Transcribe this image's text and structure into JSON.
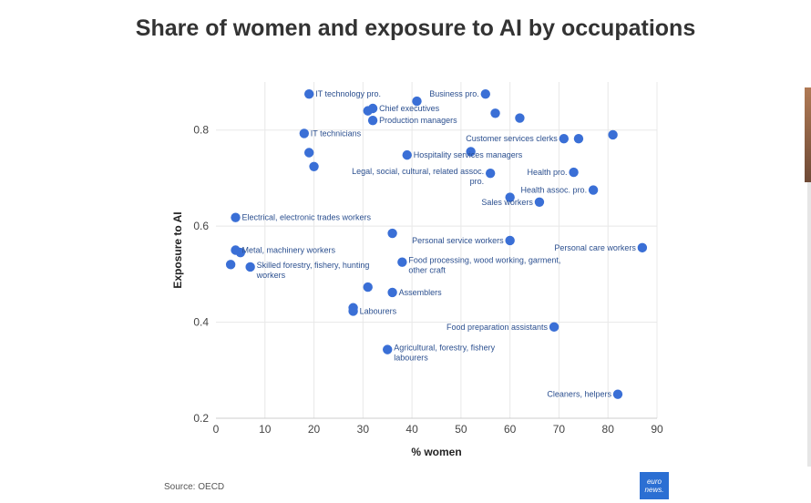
{
  "chart_data": {
    "type": "scatter",
    "title": "Share of women and exposure to AI by occupations",
    "xlabel": "% women",
    "ylabel": "Exposure to AI",
    "xlim": [
      0,
      90
    ],
    "ylim": [
      0.2,
      0.9
    ],
    "xticks": [
      0,
      10,
      20,
      30,
      40,
      50,
      60,
      70,
      80,
      90
    ],
    "yticks": [
      0.2,
      0.4,
      0.6,
      0.8
    ],
    "grid": true,
    "color": "#3a6fd6",
    "points": [
      {
        "x": 19,
        "y": 0.875,
        "label": "IT technology pro.",
        "anchor": "start"
      },
      {
        "x": 41,
        "y": 0.86,
        "label": "",
        "anchor": "start"
      },
      {
        "x": 55,
        "y": 0.875,
        "label": "Business pro.",
        "anchor": "end"
      },
      {
        "x": 31,
        "y": 0.84,
        "label": "",
        "anchor": "start"
      },
      {
        "x": 32,
        "y": 0.845,
        "label": "Chief executives",
        "anchor": "start"
      },
      {
        "x": 32,
        "y": 0.82,
        "label": "Production managers",
        "anchor": "start"
      },
      {
        "x": 57,
        "y": 0.835,
        "label": "",
        "anchor": "start"
      },
      {
        "x": 62,
        "y": 0.825,
        "label": "",
        "anchor": "start"
      },
      {
        "x": 18,
        "y": 0.793,
        "label": "IT technicians",
        "anchor": "start"
      },
      {
        "x": 71,
        "y": 0.782,
        "label": "Customer services clerks",
        "anchor": "end"
      },
      {
        "x": 74,
        "y": 0.782,
        "label": "",
        "anchor": "start"
      },
      {
        "x": 81,
        "y": 0.79,
        "label": "",
        "anchor": "start"
      },
      {
        "x": 19,
        "y": 0.753,
        "label": "",
        "anchor": "start"
      },
      {
        "x": 39,
        "y": 0.748,
        "label": "Hospitality services managers",
        "anchor": "start"
      },
      {
        "x": 52,
        "y": 0.755,
        "label": "",
        "anchor": "start"
      },
      {
        "x": 20,
        "y": 0.724,
        "label": "",
        "anchor": "start"
      },
      {
        "x": 56,
        "y": 0.71,
        "label": "Legal, social, cultural, related assoc. pro.",
        "anchor": "end"
      },
      {
        "x": 73,
        "y": 0.712,
        "label": "Health pro.",
        "anchor": "end"
      },
      {
        "x": 77,
        "y": 0.675,
        "label": "Health assoc. pro.",
        "anchor": "end"
      },
      {
        "x": 60,
        "y": 0.66,
        "label": "",
        "anchor": "start"
      },
      {
        "x": 66,
        "y": 0.65,
        "label": "Sales workers",
        "anchor": "end"
      },
      {
        "x": 4,
        "y": 0.618,
        "label": "Electrical, electronic trades workers",
        "anchor": "start"
      },
      {
        "x": 36,
        "y": 0.585,
        "label": "",
        "anchor": "start"
      },
      {
        "x": 60,
        "y": 0.57,
        "label": "Personal service workers",
        "anchor": "end"
      },
      {
        "x": 87,
        "y": 0.555,
        "label": "Personal care workers",
        "anchor": "end"
      },
      {
        "x": 4,
        "y": 0.55,
        "label": "Metal, machinery workers",
        "anchor": "start"
      },
      {
        "x": 5,
        "y": 0.545,
        "label": "",
        "anchor": "start"
      },
      {
        "x": 3,
        "y": 0.52,
        "label": "",
        "anchor": "start"
      },
      {
        "x": 7,
        "y": 0.515,
        "label": "Skilled forestry, fishery, hunting workers",
        "anchor": "start"
      },
      {
        "x": 38,
        "y": 0.525,
        "label": "Food processing, wood working, garment, other craft",
        "anchor": "start"
      },
      {
        "x": 31,
        "y": 0.473,
        "label": "",
        "anchor": "start"
      },
      {
        "x": 36,
        "y": 0.462,
        "label": "Assemblers",
        "anchor": "start"
      },
      {
        "x": 28,
        "y": 0.43,
        "label": "",
        "anchor": "start"
      },
      {
        "x": 28,
        "y": 0.423,
        "label": "Labourers",
        "anchor": "start"
      },
      {
        "x": 69,
        "y": 0.39,
        "label": "Food preparation assistants",
        "anchor": "end"
      },
      {
        "x": 35,
        "y": 0.343,
        "label": "Agricultural, forestry, fishery labourers",
        "anchor": "start"
      },
      {
        "x": 82,
        "y": 0.25,
        "label": "Cleaners, helpers",
        "anchor": "end"
      }
    ]
  },
  "footer": {
    "source": "Source: OECD",
    "logo_line1": "euro",
    "logo_line2": "news."
  }
}
